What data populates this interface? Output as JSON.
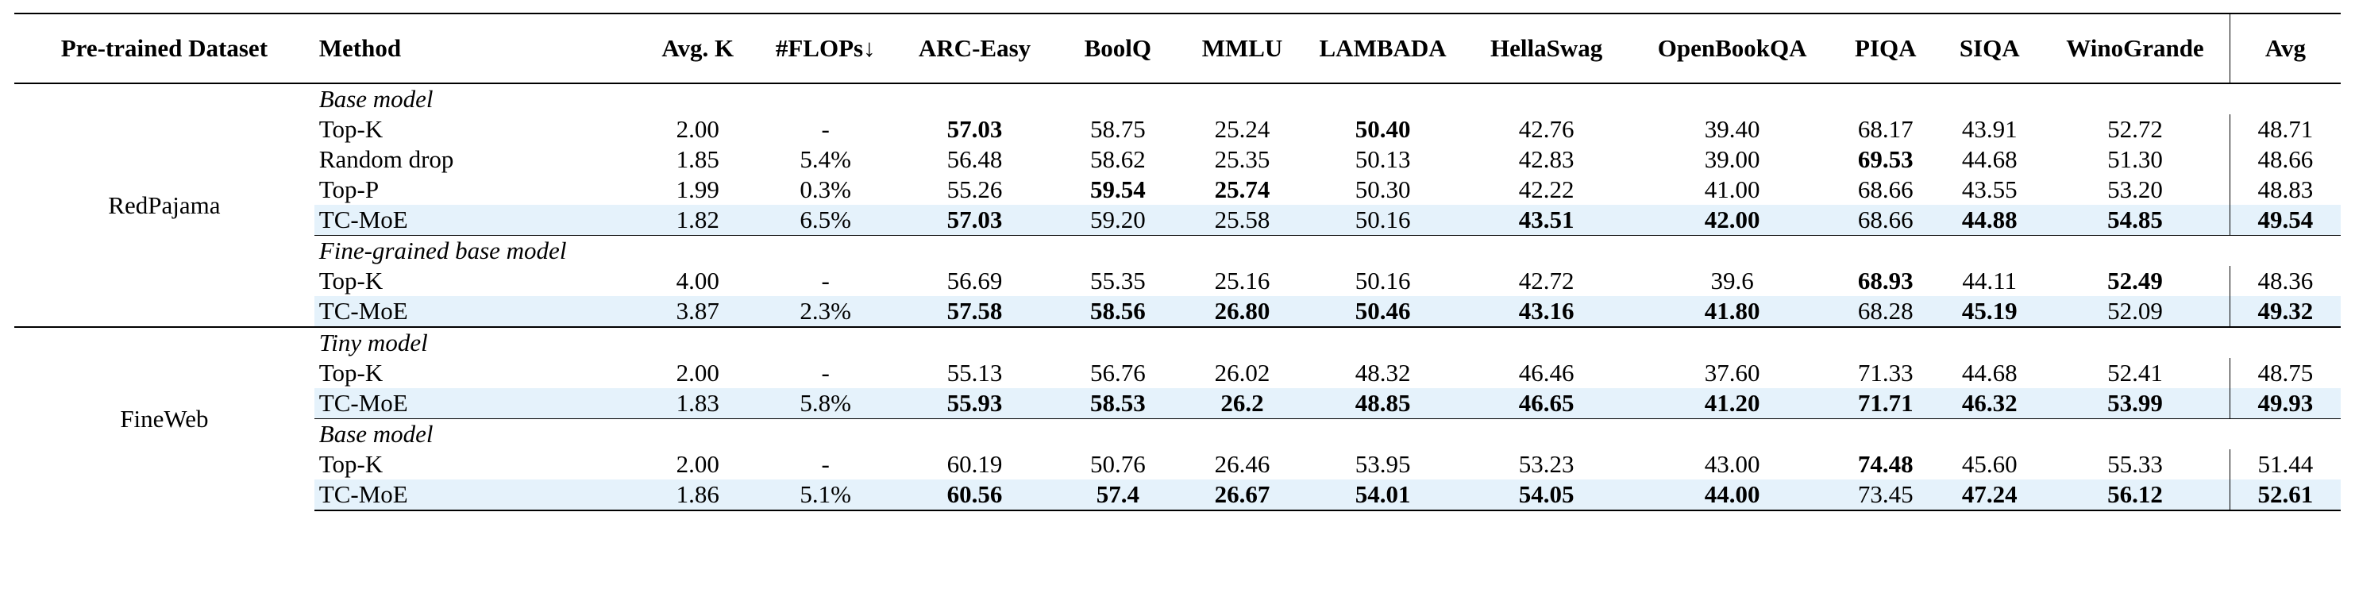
{
  "headers": [
    "Pre-trained Dataset",
    "Method",
    "Avg. K",
    "#FLOPs↓",
    "ARC-Easy",
    "BoolQ",
    "MMLU",
    "LAMBADA",
    "HellaSwag",
    "OpenBookQA",
    "PIQA",
    "SIQA",
    "WinoGrande",
    "Avg"
  ],
  "groups": [
    {
      "dataset": "RedPajama",
      "subgroups": [
        {
          "title": "Base model",
          "rows": [
            {
              "method": "Top-K",
              "avg_k": "2.00",
              "flops": "-",
              "values": [
                "57.03",
                "58.75",
                "25.24",
                "50.40",
                "42.76",
                "39.40",
                "68.17",
                "43.91",
                "52.72",
                "48.71"
              ],
              "bold": [
                0,
                3
              ],
              "highlight": false
            },
            {
              "method": "Random drop",
              "avg_k": "1.85",
              "flops": "5.4%",
              "values": [
                "56.48",
                "58.62",
                "25.35",
                "50.13",
                "42.83",
                "39.00",
                "69.53",
                "44.68",
                "51.30",
                "48.66"
              ],
              "bold": [
                6
              ],
              "highlight": false
            },
            {
              "method": "Top-P",
              "avg_k": "1.99",
              "flops": "0.3%",
              "values": [
                "55.26",
                "59.54",
                "25.74",
                "50.30",
                "42.22",
                "41.00",
                "68.66",
                "43.55",
                "53.20",
                "48.83"
              ],
              "bold": [
                1,
                2
              ],
              "highlight": false
            },
            {
              "method": "TC-MoE",
              "avg_k": "1.82",
              "flops": "6.5%",
              "values": [
                "57.03",
                "59.20",
                "25.58",
                "50.16",
                "43.51",
                "42.00",
                "68.66",
                "44.88",
                "54.85",
                "49.54"
              ],
              "bold": [
                0,
                4,
                5,
                7,
                8,
                9
              ],
              "highlight": true
            }
          ]
        },
        {
          "title": "Fine-grained base model",
          "rows": [
            {
              "method": "Top-K",
              "avg_k": "4.00",
              "flops": "-",
              "values": [
                "56.69",
                "55.35",
                "25.16",
                "50.16",
                "42.72",
                "39.6",
                "68.93",
                "44.11",
                "52.49",
                "48.36"
              ],
              "bold": [
                6,
                8
              ],
              "highlight": false
            },
            {
              "method": "TC-MoE",
              "avg_k": "3.87",
              "flops": "2.3%",
              "values": [
                "57.58",
                "58.56",
                "26.80",
                "50.46",
                "43.16",
                "41.80",
                "68.28",
                "45.19",
                "52.09",
                "49.32"
              ],
              "bold": [
                0,
                1,
                2,
                3,
                4,
                5,
                7,
                9
              ],
              "highlight": true
            }
          ]
        }
      ]
    },
    {
      "dataset": "FineWeb",
      "subgroups": [
        {
          "title": "Tiny model",
          "rows": [
            {
              "method": "Top-K",
              "avg_k": "2.00",
              "flops": "-",
              "values": [
                "55.13",
                "56.76",
                "26.02",
                "48.32",
                "46.46",
                "37.60",
                "71.33",
                "44.68",
                "52.41",
                "48.75"
              ],
              "bold": [],
              "highlight": false
            },
            {
              "method": "TC-MoE",
              "avg_k": "1.83",
              "flops": "5.8%",
              "values": [
                "55.93",
                "58.53",
                "26.2",
                "48.85",
                "46.65",
                "41.20",
                "71.71",
                "46.32",
                "53.99",
                "49.93"
              ],
              "bold": [
                0,
                1,
                2,
                3,
                4,
                5,
                6,
                7,
                8,
                9
              ],
              "highlight": true
            }
          ]
        },
        {
          "title": "Base model",
          "rows": [
            {
              "method": "Top-K",
              "avg_k": "2.00",
              "flops": "-",
              "values": [
                "60.19",
                "50.76",
                "26.46",
                "53.95",
                "53.23",
                "43.00",
                "74.48",
                "45.60",
                "55.33",
                "51.44"
              ],
              "bold": [
                6
              ],
              "highlight": false
            },
            {
              "method": "TC-MoE",
              "avg_k": "1.86",
              "flops": "5.1%",
              "values": [
                "60.56",
                "57.4",
                "26.67",
                "54.01",
                "54.05",
                "44.00",
                "73.45",
                "47.24",
                "56.12",
                "52.61"
              ],
              "bold": [
                0,
                1,
                2,
                3,
                4,
                5,
                7,
                8,
                9
              ],
              "highlight": true
            }
          ]
        }
      ]
    }
  ]
}
